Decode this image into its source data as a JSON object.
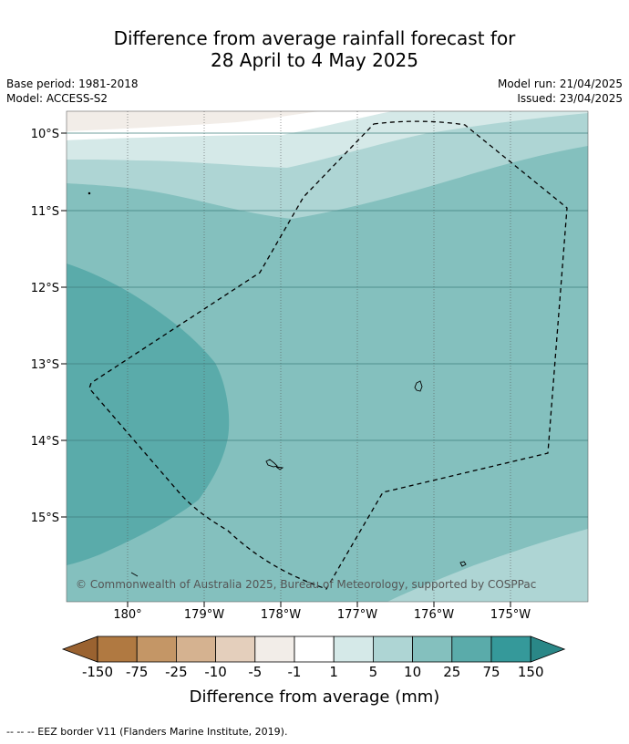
{
  "title_line1": "Difference from average rainfall forecast for",
  "title_line2": "28 April to 4 May 2025",
  "base_period": "Base period: 1981-2018",
  "model": "Model: ACCESS-S2",
  "model_run": "Model run: 21/04/2025",
  "issued": "Issued: 23/04/2025",
  "latitude_labels": [
    "10°S",
    "11°S",
    "12°S",
    "13°S",
    "14°S",
    "15°S"
  ],
  "longitude_labels": [
    "180°",
    "179°W",
    "178°W",
    "177°W",
    "176°W",
    "175°W"
  ],
  "copyright": "© Commonwealth of Australia 2025, Bureau of Meteorology, supported by COSPPac",
  "legend": {
    "title": "Difference from average (mm)",
    "tick_labels": [
      "-150",
      "-75",
      "-25",
      "-10",
      "-5",
      "-1",
      "1",
      "5",
      "10",
      "25",
      "75",
      "150"
    ],
    "colors": [
      "#9a6230",
      "#b07941",
      "#c49666",
      "#d5b290",
      "#e4cfbc",
      "#f2ede8",
      "#ffffff",
      "#d5e9e8",
      "#aed5d4",
      "#84c0be",
      "#5aabaa",
      "#35999a",
      "#2a8787"
    ]
  },
  "footnote": "--  --  -- EEZ border V11 (Flanders Marine Institute, 2019).",
  "features": [
    "EEZ border (dashed)",
    "Islands"
  ]
}
